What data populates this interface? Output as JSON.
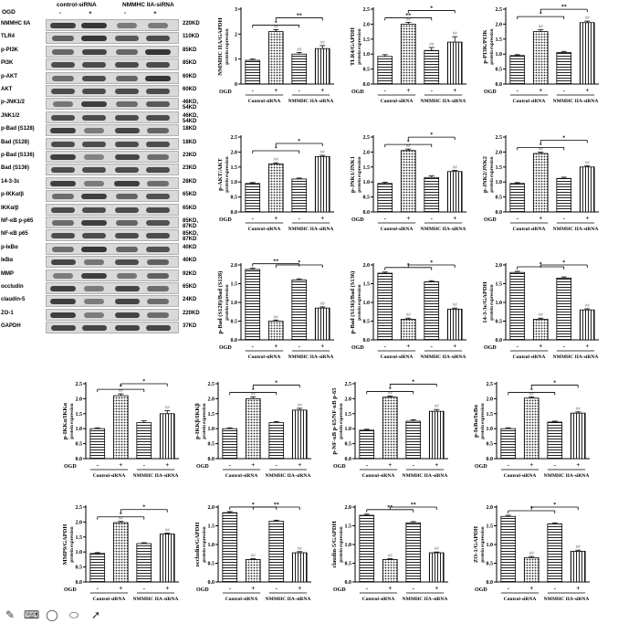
{
  "blot": {
    "header": {
      "ogd": "OGD",
      "group1": "control-siRNA",
      "group2": "NMMHC IIA-siRNA",
      "signs": [
        "-",
        "+",
        "-",
        "+"
      ]
    },
    "rows": [
      {
        "label": "NMMHC IIA",
        "kd": "220KD",
        "intensity": [
          0.8,
          0.85,
          0.35,
          0.35
        ]
      },
      {
        "label": "TLR4",
        "kd": "110KD",
        "intensity": [
          0.55,
          0.85,
          0.6,
          0.7
        ]
      },
      {
        "label": "p-PI3K",
        "kd": "85KD",
        "intensity": [
          0.5,
          0.75,
          0.5,
          0.85
        ]
      },
      {
        "label": "PI3K",
        "kd": "85KD",
        "intensity": [
          0.7,
          0.7,
          0.7,
          0.7
        ]
      },
      {
        "label": "p-AKT",
        "kd": "60KD",
        "intensity": [
          0.45,
          0.7,
          0.5,
          0.85
        ]
      },
      {
        "label": "AKT",
        "kd": "60KD",
        "intensity": [
          0.7,
          0.7,
          0.7,
          0.7
        ]
      },
      {
        "label": "p-JNK1/2",
        "kd": "46KD, 54KD",
        "intensity": [
          0.4,
          0.8,
          0.45,
          0.6
        ]
      },
      {
        "label": "JNK1/2",
        "kd": "46KD, 54KD",
        "intensity": [
          0.7,
          0.7,
          0.7,
          0.7
        ]
      },
      {
        "label": "p-Bad (S128)",
        "kd": "18KD",
        "intensity": [
          0.8,
          0.35,
          0.75,
          0.5
        ]
      },
      {
        "label": "Bad (S128)",
        "kd": "18KD",
        "intensity": [
          0.7,
          0.7,
          0.7,
          0.7
        ]
      },
      {
        "label": "p-Bad (S136)",
        "kd": "23KD",
        "intensity": [
          0.8,
          0.3,
          0.75,
          0.45
        ]
      },
      {
        "label": "Bad (S136)",
        "kd": "23KD",
        "intensity": [
          0.7,
          0.7,
          0.7,
          0.7
        ]
      },
      {
        "label": "14-3-3ε",
        "kd": "28KD",
        "intensity": [
          0.8,
          0.35,
          0.8,
          0.45
        ]
      },
      {
        "label": "p-IKKα/β",
        "kd": "65KD",
        "intensity": [
          0.45,
          0.8,
          0.5,
          0.65
        ]
      },
      {
        "label": "IKKα/β",
        "kd": "65KD",
        "intensity": [
          0.7,
          0.7,
          0.7,
          0.7
        ]
      },
      {
        "label": "NF-κB p-p65",
        "kd": "85KD, 87KD",
        "intensity": [
          0.45,
          0.8,
          0.5,
          0.65
        ]
      },
      {
        "label": "NF-κB p65",
        "kd": "85KD, 87KD",
        "intensity": [
          0.7,
          0.7,
          0.7,
          0.7
        ]
      },
      {
        "label": "p-IκBα",
        "kd": "40KD",
        "intensity": [
          0.45,
          0.85,
          0.5,
          0.65
        ]
      },
      {
        "label": "IκBα",
        "kd": "40KD",
        "intensity": [
          0.75,
          0.4,
          0.7,
          0.55
        ]
      },
      {
        "label": "MMP",
        "kd": "92KD",
        "intensity": [
          0.35,
          0.8,
          0.4,
          0.55
        ]
      },
      {
        "label": "occludin",
        "kd": "65KD",
        "intensity": [
          0.8,
          0.35,
          0.75,
          0.45
        ]
      },
      {
        "label": "claudin-5",
        "kd": "24KD",
        "intensity": [
          0.8,
          0.35,
          0.75,
          0.45
        ]
      },
      {
        "label": "ZO-1",
        "kd": "220KD",
        "intensity": [
          0.8,
          0.35,
          0.75,
          0.45
        ]
      },
      {
        "label": "GAPDH",
        "kd": "37KD",
        "intensity": [
          0.75,
          0.75,
          0.75,
          0.75
        ]
      }
    ]
  },
  "toolbar": {
    "icons": [
      "pencil-icon",
      "keyboard-icon",
      "lasso-icon",
      "eraser-icon",
      "pointer-icon"
    ]
  },
  "chart_data": [
    {
      "type": "bar",
      "ylabel": "NMMHC IIA/GAPDH",
      "ylabel2": "protein expression",
      "ylim": [
        0,
        3
      ],
      "yticks": [
        "0",
        "1",
        "2",
        "3"
      ],
      "values": [
        0.95,
        2.1,
        1.2,
        1.42
      ],
      "errors": [
        0.05,
        0.08,
        0.06,
        0.12
      ],
      "hash": [
        "",
        "##",
        "##",
        "##"
      ],
      "groups": [
        "Control-siRNA",
        "NMMHC IIA-siRNA"
      ],
      "brackets": [
        {
          "from": 0,
          "to": 2,
          "label": "*"
        },
        {
          "from": 1,
          "to": 3,
          "label": "**"
        }
      ]
    },
    {
      "type": "bar",
      "ylabel": "TLR4/GAPDH",
      "ylabel2": "protein expression",
      "ylim": [
        0,
        2.5
      ],
      "yticks": [
        "0.0",
        "0.5",
        "1.0",
        "1.5",
        "2.0",
        "2.5"
      ],
      "values": [
        0.92,
        2.0,
        1.12,
        1.4
      ],
      "errors": [
        0.06,
        0.06,
        0.1,
        0.18
      ],
      "hash": [
        "",
        "##",
        "##",
        "##"
      ],
      "groups": [
        "Control-siRNA",
        "NMMHC IIA-siRNA"
      ],
      "brackets": [
        {
          "from": 0,
          "to": 2,
          "label": "**"
        },
        {
          "from": 1,
          "to": 3,
          "label": "*"
        }
      ]
    },
    {
      "type": "bar",
      "ylabel": "p-PI3K/PI3K",
      "ylabel2": "protein expression",
      "ylim": [
        0,
        2.5
      ],
      "yticks": [
        "0.0",
        "0.5",
        "1.0",
        "1.5",
        "2.0",
        "2.5"
      ],
      "values": [
        0.95,
        1.75,
        1.05,
        2.05
      ],
      "errors": [
        0.03,
        0.06,
        0.04,
        0.05
      ],
      "hash": [
        "",
        "##",
        "",
        "##"
      ],
      "groups": [
        "Control-siRNA",
        "NMMHC IIA-siRNA"
      ],
      "brackets": [
        {
          "from": 0,
          "to": 2,
          "label": "*"
        },
        {
          "from": 1,
          "to": 3,
          "label": "**"
        }
      ]
    },
    {
      "type": "bar",
      "ylabel": "p-AKT/AKT",
      "ylabel2": "protein expression",
      "ylim": [
        0,
        2.5
      ],
      "yticks": [
        "0.0",
        "0.5",
        "1.0",
        "1.5",
        "2.0",
        "2.5"
      ],
      "values": [
        0.95,
        1.6,
        1.1,
        1.85
      ],
      "errors": [
        0.03,
        0.04,
        0.03,
        0.04
      ],
      "hash": [
        "",
        "##",
        "",
        "##"
      ],
      "groups": [
        "Control-siRNA",
        "NMMHC IIA-siRNA"
      ],
      "brackets": [
        {
          "from": 0,
          "to": 2,
          "label": "*"
        },
        {
          "from": 1,
          "to": 3,
          "label": "*"
        }
      ]
    },
    {
      "type": "bar",
      "ylabel": "p-JNK1/JNK1",
      "ylabel2": "protein expression",
      "ylim": [
        0,
        2.5
      ],
      "yticks": [
        "0.0",
        "0.5",
        "1.0",
        "1.5",
        "2.0",
        "2.5"
      ],
      "values": [
        0.95,
        2.05,
        1.15,
        1.35
      ],
      "errors": [
        0.04,
        0.05,
        0.05,
        0.04
      ],
      "hash": [
        "",
        "##",
        "",
        "##"
      ],
      "groups": [
        "Control-siRNA",
        "NMMHC IIA-siRNA"
      ],
      "brackets": [
        {
          "from": 0,
          "to": 2,
          "label": "*"
        },
        {
          "from": 1,
          "to": 3,
          "label": "*"
        }
      ]
    },
    {
      "type": "bar",
      "ylabel": "p-JNK2/JNK2",
      "ylabel2": "protein expression",
      "ylim": [
        0,
        2.5
      ],
      "yticks": [
        "0.0",
        "0.5",
        "1.0",
        "1.5",
        "2.0",
        "2.5"
      ],
      "values": [
        0.95,
        1.95,
        1.12,
        1.5
      ],
      "errors": [
        0.03,
        0.05,
        0.04,
        0.04
      ],
      "hash": [
        "",
        "##",
        "",
        "##"
      ],
      "groups": [
        "Control-siRNA",
        "NMMHC IIA-siRNA"
      ],
      "brackets": [
        {
          "from": 0,
          "to": 2,
          "label": "*"
        },
        {
          "from": 1,
          "to": 3,
          "label": "*"
        }
      ]
    },
    {
      "type": "bar",
      "ylabel": "p-Bad (S128)/Bad (S128)",
      "ylabel2": "protein expression",
      "ylim": [
        0,
        2.0
      ],
      "yticks": [
        "0.0",
        "0.5",
        "1.0",
        "1.5",
        "2.0"
      ],
      "values": [
        1.88,
        0.5,
        1.6,
        0.85
      ],
      "errors": [
        0.03,
        0.03,
        0.03,
        0.03
      ],
      "hash": [
        "",
        "##",
        "",
        "##"
      ],
      "groups": [
        "Control-siRNA",
        "NMMHC IIA-siRNA"
      ],
      "brackets": [
        {
          "from": 0,
          "to": 2,
          "label": "**"
        },
        {
          "from": 1,
          "to": 3,
          "label": "*"
        }
      ]
    },
    {
      "type": "bar",
      "ylabel": "p-Bad (S136)/Bad (S136)",
      "ylabel2": "protein expression",
      "ylim": [
        0,
        2.0
      ],
      "yticks": [
        "0.0",
        "0.5",
        "1.0",
        "1.5",
        "2.0"
      ],
      "values": [
        1.78,
        0.55,
        1.55,
        0.82
      ],
      "errors": [
        0.03,
        0.03,
        0.03,
        0.03
      ],
      "hash": [
        "",
        "##",
        "",
        "##"
      ],
      "groups": [
        "Control-siRNA",
        "NMMHC IIA-siRNA"
      ],
      "brackets": [
        {
          "from": 0,
          "to": 2,
          "label": "*"
        },
        {
          "from": 1,
          "to": 3,
          "label": "*"
        }
      ]
    },
    {
      "type": "bar",
      "ylabel": "14-3-3ε/GAPDH",
      "ylabel2": "protein expression",
      "ylim": [
        0,
        2.0
      ],
      "yticks": [
        "0.0",
        "0.5",
        "1.0",
        "1.5",
        "2.0"
      ],
      "values": [
        1.8,
        0.55,
        1.65,
        0.8
      ],
      "errors": [
        0.03,
        0.03,
        0.03,
        0.03
      ],
      "hash": [
        "",
        "##",
        "",
        "##"
      ],
      "groups": [
        "Control-siRNA",
        "NMMHC IIA-siRNA"
      ],
      "brackets": [
        {
          "from": 0,
          "to": 2,
          "label": "*"
        },
        {
          "from": 1,
          "to": 3,
          "label": "*"
        }
      ]
    },
    {
      "type": "bar",
      "ylabel": "p-IKKα/IKKα",
      "ylabel2": "protein expression",
      "ylim": [
        0,
        2.5
      ],
      "yticks": [
        "0.0",
        "0.5",
        "1.0",
        "1.5",
        "2.0",
        "2.5"
      ],
      "values": [
        1.0,
        2.1,
        1.2,
        1.5
      ],
      "errors": [
        0.03,
        0.06,
        0.06,
        0.1
      ],
      "hash": [
        "",
        "##",
        "",
        "##"
      ],
      "groups": [
        "Control-siRNA",
        "NMMHC IIA-siRNA"
      ],
      "brackets": [
        {
          "from": 0,
          "to": 2,
          "label": "*"
        },
        {
          "from": 1,
          "to": 3,
          "label": "*"
        }
      ]
    },
    {
      "type": "bar",
      "ylabel": "p-IKKβ/IKKβ",
      "ylabel2": "protein expression",
      "ylim": [
        0,
        2.5
      ],
      "yticks": [
        "0.0",
        "0.5",
        "1.0",
        "1.5",
        "2.0",
        "2.5"
      ],
      "values": [
        1.0,
        2.0,
        1.2,
        1.62
      ],
      "errors": [
        0.03,
        0.06,
        0.04,
        0.06
      ],
      "hash": [
        "",
        "##",
        "",
        "##"
      ],
      "groups": [
        "Control-siRNA",
        "NMMHC IIA-siRNA"
      ],
      "brackets": [
        {
          "from": 0,
          "to": 2,
          "label": "*"
        },
        {
          "from": 1,
          "to": 3,
          "label": "*"
        }
      ]
    },
    {
      "type": "bar",
      "ylabel": "p-NF-κB p-65/NF-κB p-65",
      "ylabel2": "protein expression",
      "ylim": [
        0,
        2.5
      ],
      "yticks": [
        "0.0",
        "0.5",
        "1.0",
        "1.5",
        "2.0",
        "2.5"
      ],
      "values": [
        0.95,
        2.05,
        1.25,
        1.58
      ],
      "errors": [
        0.03,
        0.04,
        0.05,
        0.06
      ],
      "hash": [
        "",
        "##",
        "",
        "##"
      ],
      "groups": [
        "Control-siRNA",
        "NMMHC IIA-siRNA"
      ],
      "brackets": [
        {
          "from": 0,
          "to": 2,
          "label": "*"
        },
        {
          "from": 1,
          "to": 3,
          "label": "*"
        }
      ]
    },
    {
      "type": "bar",
      "ylabel": "p-IκBα/IκBα",
      "ylabel2": "protein expression",
      "ylim": [
        0,
        2.5
      ],
      "yticks": [
        "0.0",
        "0.5",
        "1.0",
        "1.5",
        "2.0",
        "2.5"
      ],
      "values": [
        1.0,
        2.02,
        1.22,
        1.52
      ],
      "errors": [
        0.03,
        0.04,
        0.03,
        0.04
      ],
      "hash": [
        "",
        "##",
        "",
        "##"
      ],
      "groups": [
        "Control-siRNA",
        "NMMHC IIA-siRNA"
      ],
      "brackets": [
        {
          "from": 0,
          "to": 2,
          "label": "*"
        },
        {
          "from": 1,
          "to": 3,
          "label": "*"
        }
      ]
    },
    {
      "type": "bar",
      "ylabel": "MMP9/GAPDH",
      "ylabel2": "protein expression",
      "ylim": [
        0,
        2.5
      ],
      "yticks": [
        "0.0",
        "0.5",
        "1.0",
        "1.5",
        "2.0",
        "2.5"
      ],
      "values": [
        0.95,
        1.98,
        1.28,
        1.6
      ],
      "errors": [
        0.03,
        0.04,
        0.03,
        0.03
      ],
      "hash": [
        "",
        "##",
        "",
        "##"
      ],
      "groups": [
        "Control-siRNA",
        "NMMHC IIA-siRNA"
      ],
      "brackets": [
        {
          "from": 0,
          "to": 2,
          "label": "*"
        },
        {
          "from": 1,
          "to": 3,
          "label": "*"
        }
      ]
    },
    {
      "type": "bar",
      "ylabel": "occludin/GAPDH",
      "ylabel2": "protein expression",
      "ylim": [
        0,
        2.0
      ],
      "yticks": [
        "0.0",
        "0.5",
        "1.0",
        "1.5",
        "2.0"
      ],
      "values": [
        1.85,
        0.6,
        1.62,
        0.78
      ],
      "errors": [
        0.03,
        0.02,
        0.03,
        0.03
      ],
      "hash": [
        "",
        "##",
        "",
        "##"
      ],
      "groups": [
        "Control-siRNA",
        "NMMHC IIA-siRNA"
      ],
      "brackets": [
        {
          "from": 0,
          "to": 2,
          "label": "*"
        },
        {
          "from": 1,
          "to": 3,
          "label": "**"
        }
      ]
    },
    {
      "type": "bar",
      "ylabel": "claudin-5/GAPDH",
      "ylabel2": "protein expression",
      "ylim": [
        0,
        2.0
      ],
      "yticks": [
        "0.0",
        "0.5",
        "1.0",
        "1.5",
        "2.0"
      ],
      "values": [
        1.78,
        0.6,
        1.58,
        0.78
      ],
      "errors": [
        0.03,
        0.02,
        0.03,
        0.02
      ],
      "hash": [
        "",
        "##",
        "",
        "##"
      ],
      "groups": [
        "Control-siRNA",
        "NMMHC IIA-siRNA"
      ],
      "brackets": [
        {
          "from": 0,
          "to": 2,
          "label": "**"
        },
        {
          "from": 1,
          "to": 3,
          "label": "**"
        }
      ]
    },
    {
      "type": "bar",
      "ylabel": "ZO-1/GAPDH",
      "ylabel2": "protein expression",
      "ylim": [
        0,
        2.0
      ],
      "yticks": [
        "0.0",
        "0.5",
        "1.0",
        "1.5",
        "2.0"
      ],
      "values": [
        1.75,
        0.65,
        1.55,
        0.82
      ],
      "errors": [
        0.03,
        0.03,
        0.03,
        0.03
      ],
      "hash": [
        "",
        "##",
        "",
        "##"
      ],
      "groups": [
        "Control-siRNA",
        "NMMHC IIA-siRNA"
      ],
      "brackets": [
        {
          "from": 0,
          "to": 2,
          "label": "*"
        },
        {
          "from": 1,
          "to": 3,
          "label": "*"
        }
      ]
    }
  ],
  "chart_labels": {
    "ogd": "OGD",
    "signs": [
      "-",
      "+",
      "-",
      "+"
    ]
  }
}
